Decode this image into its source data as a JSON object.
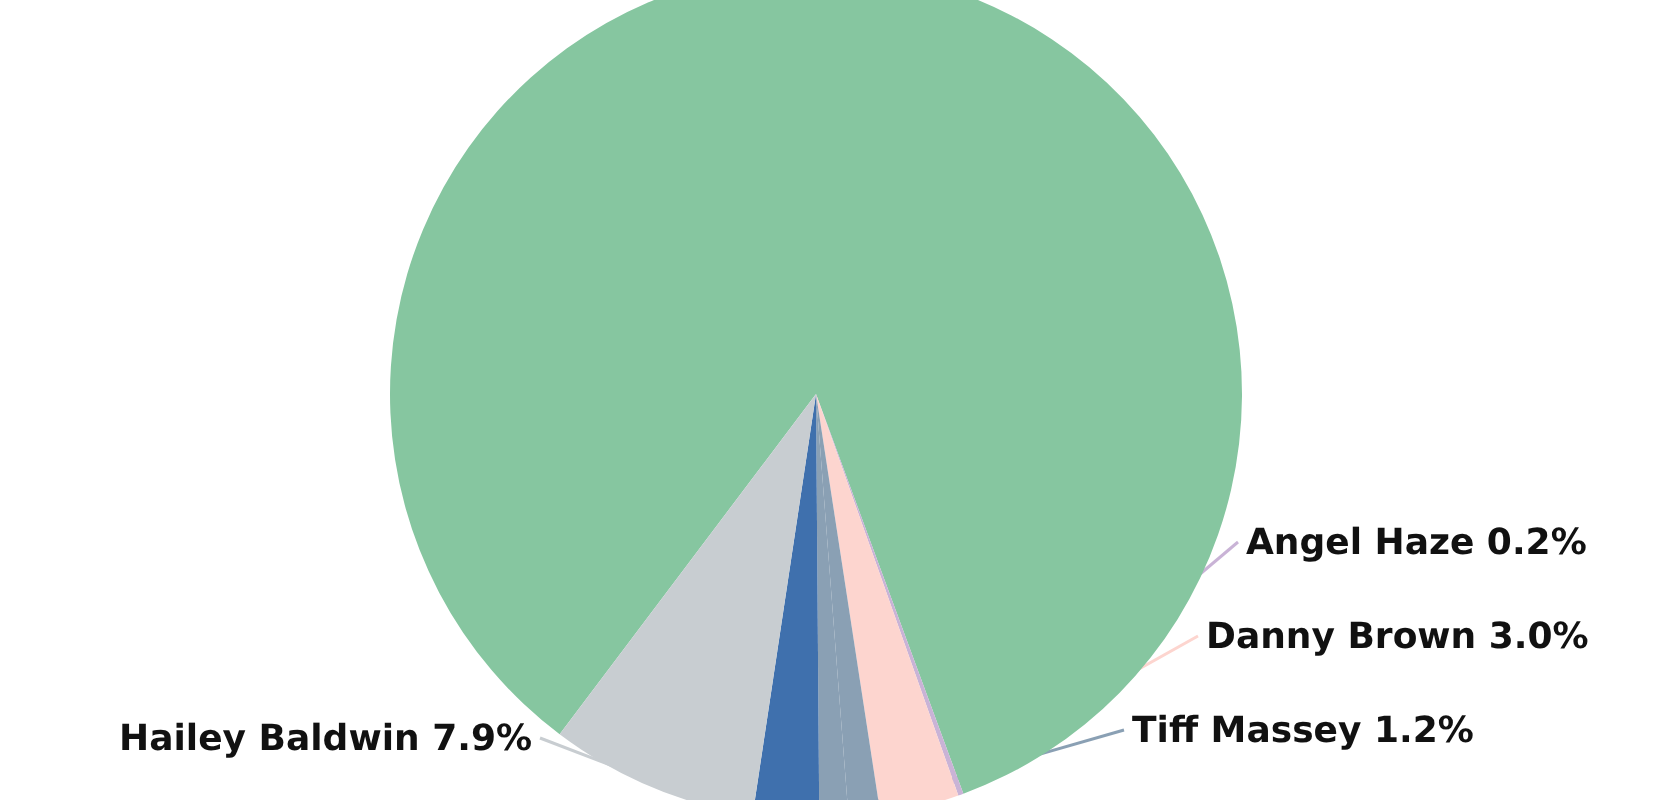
{
  "chart_data": {
    "type": "pie",
    "categories": [
      null,
      "Angel Haze",
      "Danny Brown",
      "Tiff Massey",
      null,
      null,
      "Hailey Baldwin"
    ],
    "values": [
      84.1,
      0.2,
      3.0,
      1.2,
      1.1,
      2.5,
      7.9
    ],
    "value_labels": [
      null,
      "0.2%",
      "3.0%",
      "1.2%",
      null,
      null,
      "7.9%"
    ],
    "colors": [
      "#86c6a0",
      "#c9b3d6",
      "#fdd5cf",
      "#8aa0b4",
      "#8aa0b4",
      "#3f70ad",
      "#c8cdd1"
    ],
    "legend": false
  }
}
